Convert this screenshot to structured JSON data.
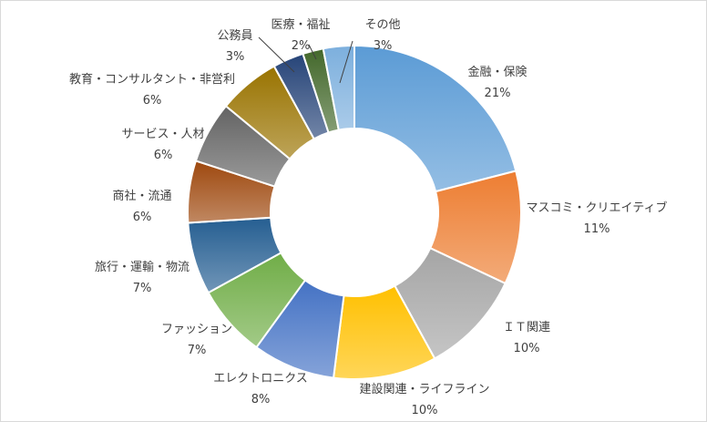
{
  "chart_data": {
    "type": "pie",
    "title": "",
    "categories": [
      "金融・保険",
      "マスコミ・クリエイティブ",
      "ＩＴ関連",
      "建設関連・ライフライン",
      "エレクトロニクス",
      "ファッション",
      "旅行・運輸・物流",
      "商社・流通",
      "サービス・人材",
      "教育・コンサルタント・非営利",
      "公務員",
      "医療・福祉",
      "その他"
    ],
    "values": [
      21,
      11,
      10,
      10,
      8,
      7,
      7,
      6,
      6,
      6,
      3,
      2,
      3
    ],
    "value_labels": [
      "21%",
      "11%",
      "10%",
      "10%",
      "8%",
      "7%",
      "7%",
      "6%",
      "6%",
      "6%",
      "3%",
      "2%",
      "3%"
    ],
    "colors": [
      "#5b9bd5",
      "#ed7d31",
      "#a5a5a5",
      "#ffc000",
      "#4472c4",
      "#70ad47",
      "#255e91",
      "#9e480e",
      "#636363",
      "#997300",
      "#264478",
      "#43682b",
      "#7cafdd"
    ],
    "legend": "none",
    "chart_style": "doughnut"
  }
}
